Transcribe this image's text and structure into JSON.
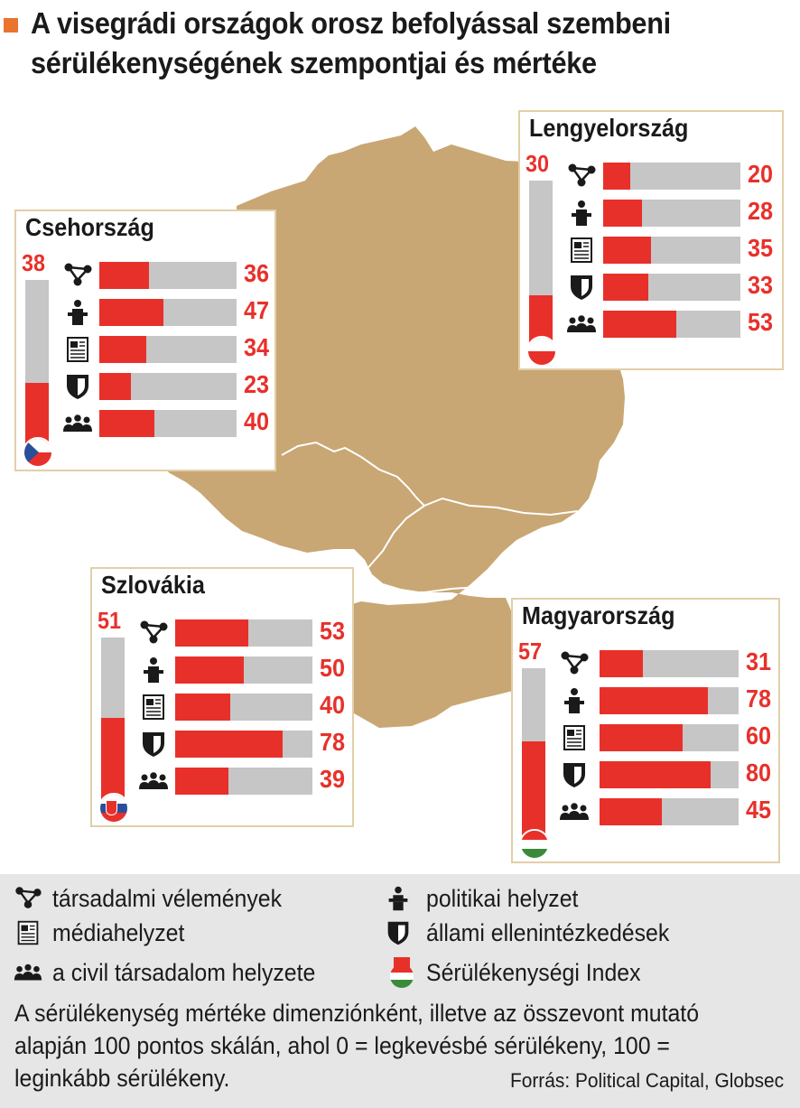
{
  "title": "A visegrádi országok orosz befolyással szembeni sérülékenységének szempontjai és mértéke",
  "colors": {
    "accent": "#e8302a",
    "bar_bg": "#c6c6c6",
    "map": "#c8a774",
    "card_border": "#e2cfa8",
    "marker": "#e8742f"
  },
  "chart_data": {
    "type": "bar",
    "title": "A visegrádi országok orosz befolyással szembeni sérülékenységének szempontjai és mértéke",
    "scale": [
      0,
      100
    ],
    "categories": [
      "társadalmi vélemények",
      "politikai helyzet",
      "médiahelyzet",
      "állami ellenintézkedések",
      "a civil társadalom helyzete"
    ],
    "countries": [
      {
        "name": "Lengyelország",
        "index": 30,
        "flag": "poland",
        "values": [
          20,
          28,
          35,
          33,
          53
        ]
      },
      {
        "name": "Csehország",
        "index": 38,
        "flag": "czech",
        "values": [
          36,
          47,
          34,
          23,
          40
        ]
      },
      {
        "name": "Szlovákia",
        "index": 51,
        "flag": "slovakia",
        "values": [
          53,
          50,
          40,
          78,
          39
        ]
      },
      {
        "name": "Magyarország",
        "index": 57,
        "flag": "hungary",
        "values": [
          31,
          78,
          60,
          80,
          45
        ]
      }
    ]
  },
  "legend": {
    "items": [
      {
        "icon": "network-icon",
        "label": "társadalmi vélemények"
      },
      {
        "icon": "podium-icon",
        "label": "politikai helyzet"
      },
      {
        "icon": "newspaper-icon",
        "label": "médiahelyzet"
      },
      {
        "icon": "shield-icon",
        "label": "állami ellenintézkedések"
      },
      {
        "icon": "people-icon",
        "label": "a civil társadalom helyzete"
      },
      {
        "icon": "flag-index-icon",
        "label": "Sérülékenységi Index"
      }
    ]
  },
  "note": "A sérülékenység mértéke dimenziónként, illetve az összevont mutató alapján 100 pontos skálán, ahol 0 = legkevésbé sérülékeny, 100 = leginkább sérülékeny.",
  "source": "Forrás: Political Capital, Globsec"
}
